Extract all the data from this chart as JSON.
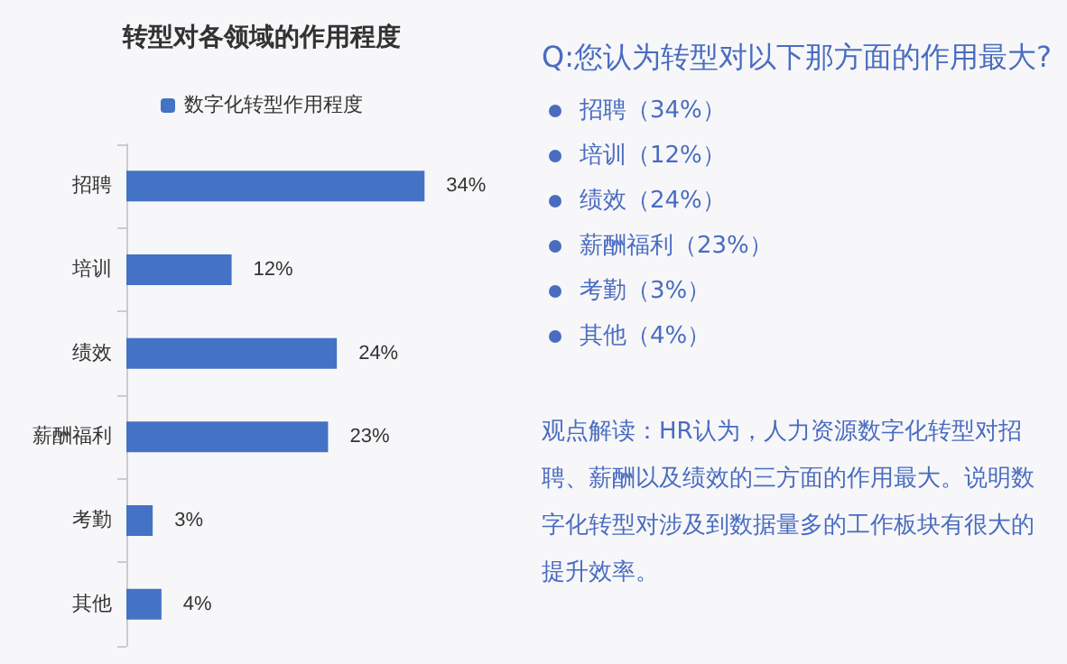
{
  "chart_data": [
    {
      "type": "bar",
      "orientation": "horizontal",
      "title": "转型对各领域的作用程度",
      "categories": [
        "招聘",
        "培训",
        "绩效",
        "薪酬福利",
        "考勤",
        "其他"
      ],
      "series": [
        {
          "name": "数字化转型作用程度",
          "color": "#4472c4",
          "values": [
            34,
            12,
            24,
            23,
            3,
            4
          ],
          "value_labels": [
            "34%",
            "12%",
            "24%",
            "23%",
            "3%",
            "4%"
          ]
        }
      ],
      "legend": "top"
    },
    {
      "type": "other",
      "title": "Q:您认为转型对以下那方面的作用最大?",
      "annotations": [
        "招聘（34%）",
        "培训（12%）",
        "绩效（24%）",
        "薪酬福利（23%）",
        "考勤（3%）",
        "其他（4%）",
        "观点解读：HR认为，人力资源数字化转型对招聘、薪酬以及绩效的三方面的作用最大。说明数字化转型对涉及到数据量多的工作板块有很大的提升效率。"
      ]
    }
  ]
}
